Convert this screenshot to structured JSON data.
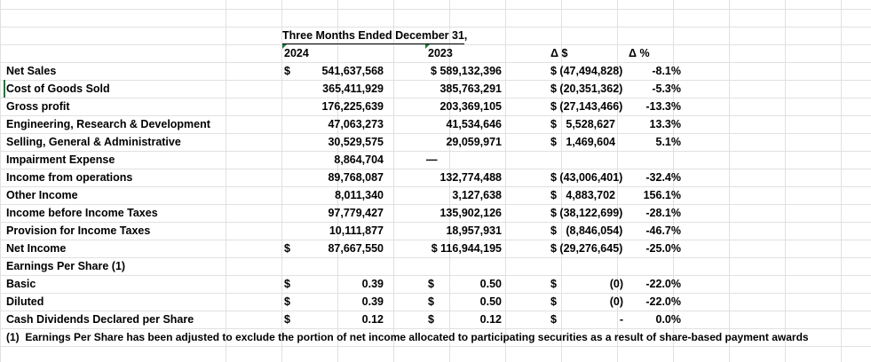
{
  "header": {
    "period": "Three Months Ended December 31,",
    "year_current": "2024",
    "year_prior": "2023",
    "delta_dollar": "Δ $",
    "delta_pct": "Δ %"
  },
  "rows": [
    {
      "label": "Net Sales",
      "cur_sym": "$",
      "cur": "541,637,568",
      "prior": "$ 589,132,396",
      "delta": "$ (47,494,828)",
      "pct": "-8.1%"
    },
    {
      "label": "Cost of Goods Sold",
      "cur_sym": "",
      "cur": "365,411,929",
      "prior": "385,763,291",
      "delta": "$ (20,351,362)",
      "pct": "-5.3%"
    },
    {
      "label": "Gross profit",
      "cur_sym": "",
      "cur": "176,225,639",
      "prior": "203,369,105",
      "delta": "$ (27,143,466)",
      "pct": "-13.3%"
    },
    {
      "label": "Engineering, Research & Development",
      "cur_sym": "",
      "cur": "47,063,273",
      "prior": "41,534,646",
      "delta": "$   5,528,627",
      "pct": "13.3%"
    },
    {
      "label": "Selling, General & Administrative",
      "cur_sym": "",
      "cur": "30,529,575",
      "prior": "29,059,971",
      "delta": "$   1,469,604",
      "pct": "5.1%"
    },
    {
      "label": "Impairment Expense",
      "cur_sym": "",
      "cur": "8,864,704",
      "prior": "—",
      "delta": "",
      "pct": ""
    },
    {
      "label": "Income from operations",
      "cur_sym": "",
      "cur": "89,768,087",
      "prior": "132,774,488",
      "delta": "$ (43,006,401)",
      "pct": "-32.4%"
    },
    {
      "label": "Other Income",
      "cur_sym": "",
      "cur": "8,011,340",
      "prior": "3,127,638",
      "delta": "$   4,883,702",
      "pct": "156.1%"
    },
    {
      "label": "Income before Income Taxes",
      "cur_sym": "",
      "cur": "97,779,427",
      "prior": "135,902,126",
      "delta": "$ (38,122,699)",
      "pct": "-28.1%"
    },
    {
      "label": "Provision for Income Taxes",
      "cur_sym": "",
      "cur": "10,111,877",
      "prior": "18,957,931",
      "delta": "$   (8,846,054)",
      "pct": "-46.7%"
    },
    {
      "label": "Net Income",
      "cur_sym": "$",
      "cur": "87,667,550",
      "prior": "$ 116,944,195",
      "delta": "$ (29,276,645)",
      "pct": "-25.0%"
    }
  ],
  "eps": {
    "title": "Earnings Per Share (1)",
    "rows": [
      {
        "label": "Basic",
        "cur_sym": "$",
        "cur": "0.39",
        "prior_sym": "$",
        "prior": "0.50",
        "delta_sym": "$",
        "delta": "(0)",
        "pct": "-22.0%"
      },
      {
        "label": "Diluted",
        "cur_sym": "$",
        "cur": "0.39",
        "prior_sym": "$",
        "prior": "0.50",
        "delta_sym": "$",
        "delta": "(0)",
        "pct": "-22.0%"
      },
      {
        "label": "Cash Dividends Declared per Share",
        "cur_sym": "$",
        "cur": "0.12",
        "prior_sym": "$",
        "prior": "0.12",
        "delta_sym": "$",
        "delta": "-",
        "pct": "0.0%"
      }
    ]
  },
  "footnote": "(1)  Earnings Per Share has been adjusted to exclude the portion of net income allocated to participating securities as a result of share-based payment awards",
  "colors": {
    "gridline": "#e1e1e1",
    "triangle": "#1d7a3a"
  }
}
